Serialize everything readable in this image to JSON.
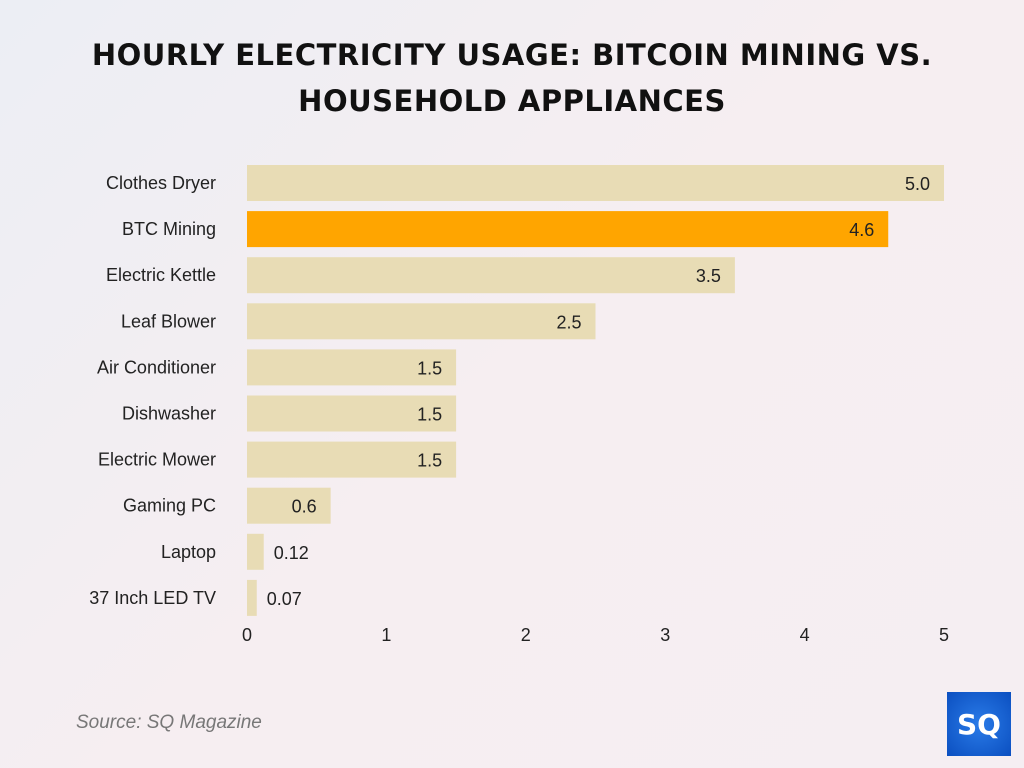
{
  "chart_data": {
    "type": "bar",
    "orientation": "horizontal",
    "title": "HOURLY ELECTRICITY USAGE: BITCOIN MINING VS. HOUSEHOLD APPLIANCES",
    "categories": [
      "Clothes Dryer",
      "BTC Mining",
      "Electric Kettle",
      "Leaf Blower",
      "Air Conditioner",
      "Dishwasher",
      "Electric Mower",
      "Gaming PC",
      "Laptop",
      "37 Inch LED TV"
    ],
    "values": [
      5.0,
      4.6,
      3.5,
      2.5,
      1.5,
      1.5,
      1.5,
      0.6,
      0.12,
      0.07
    ],
    "labels": [
      "5.0",
      "4.6",
      "3.5",
      "2.5",
      "1.5",
      "1.5",
      "1.5",
      "0.6",
      "0.12",
      "0.07"
    ],
    "highlight": "BTC Mining",
    "xlim": [
      0,
      5
    ],
    "xticks": [
      "0",
      "1",
      "2",
      "3",
      "4",
      "5"
    ],
    "xlabel": "",
    "ylabel": "",
    "grid": false,
    "colors": {
      "default": "#e8dcb5",
      "highlight": "#ffa500"
    }
  },
  "source": "Source: SQ Magazine",
  "logo": "SQ"
}
